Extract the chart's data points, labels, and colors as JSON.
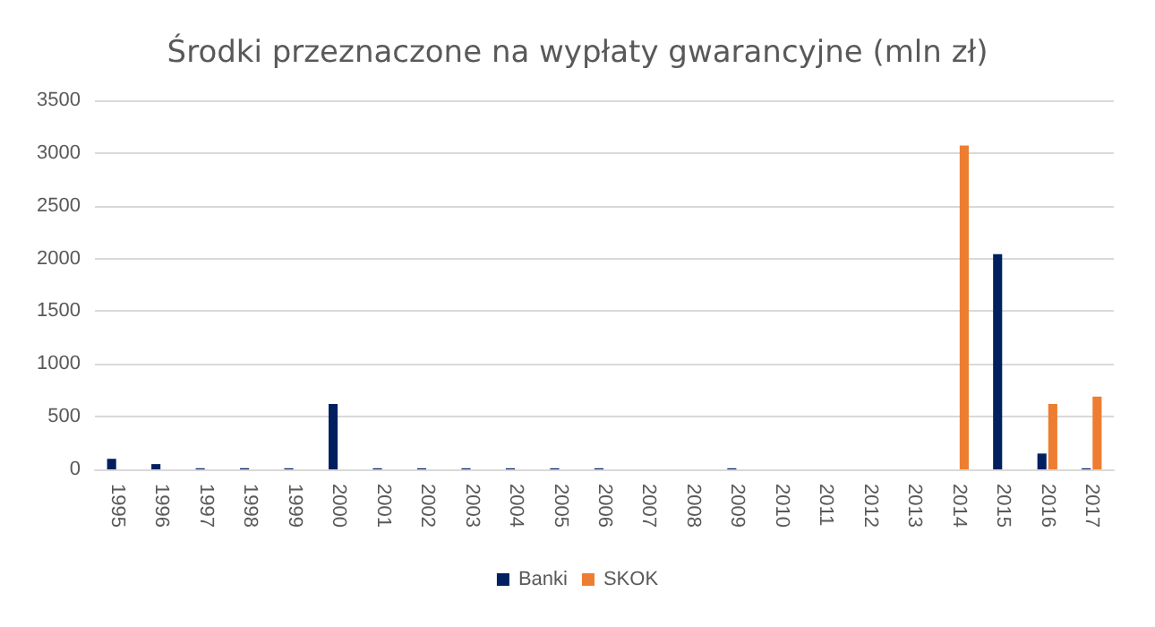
{
  "chart_data": {
    "type": "bar",
    "title": "Środki przeznaczone na wypłaty gwarancyjne (mln zł)",
    "categories": [
      "1995",
      "1996",
      "1997",
      "1998",
      "1999",
      "2000",
      "2001",
      "2002",
      "2003",
      "2004",
      "2005",
      "2006",
      "2007",
      "2008",
      "2009",
      "2010",
      "2011",
      "2012",
      "2013",
      "2014",
      "2015",
      "2016",
      "2017"
    ],
    "series": [
      {
        "name": "Banki",
        "color": "#002060",
        "values": [
          100,
          50,
          10,
          10,
          10,
          620,
          10,
          10,
          10,
          10,
          10,
          10,
          0,
          0,
          10,
          0,
          0,
          0,
          0,
          0,
          2040,
          150,
          10
        ]
      },
      {
        "name": "SKOK",
        "color": "#ed7d31",
        "values": [
          0,
          0,
          0,
          0,
          0,
          0,
          0,
          0,
          0,
          0,
          0,
          0,
          0,
          0,
          0,
          0,
          0,
          0,
          0,
          3070,
          0,
          620,
          690
        ]
      }
    ],
    "ylim": [
      0,
      3500
    ],
    "yticks": [
      0,
      500,
      1000,
      1500,
      2000,
      2500,
      3000,
      3500
    ],
    "grid": "y",
    "legend": "bottom"
  }
}
